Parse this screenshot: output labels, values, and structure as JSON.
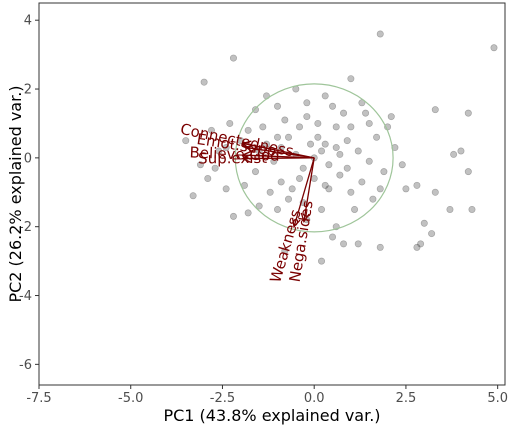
{
  "chart_data": {
    "type": "scatter",
    "subtype": "pca-biplot",
    "xlabel": "PC1 (43.8% explained var.)",
    "ylabel": "PC2 (26.2% explained var.)",
    "xlim": [
      -7.5,
      5.2
    ],
    "ylim": [
      -6.6,
      4.5
    ],
    "xticks": [
      -7.5,
      -5.0,
      -2.5,
      0.0,
      2.5,
      5.0
    ],
    "xtick_labels": [
      "-7.5",
      "-5.0",
      "-2.5",
      "0.0",
      "2.5",
      "5.0"
    ],
    "yticks": [
      -6,
      -4,
      -2,
      0,
      2,
      4
    ],
    "ytick_labels": [
      "-6",
      "-4",
      "-2",
      "0",
      "2",
      "4"
    ],
    "grid": false,
    "colors": {
      "points": "#333333",
      "loadings": "#7a0000",
      "circle": "#9fc59a"
    },
    "circle": {
      "cx": 0.0,
      "cy": 0.0,
      "r": 2.15
    },
    "loadings": [
      {
        "name": "Connectedness",
        "x": -1.95,
        "y": 0.42
      },
      {
        "name": "Emot.supp",
        "x": -1.85,
        "y": 0.3
      },
      {
        "name": "Believe.God",
        "x": -1.95,
        "y": 0.08
      },
      {
        "name": "Sup.exist",
        "x": -1.95,
        "y": -0.02
      },
      {
        "name": "Weakness",
        "x": -0.55,
        "y": -2.0
      },
      {
        "name": "Nega.sides",
        "x": -0.28,
        "y": -1.85
      }
    ],
    "points": [
      [
        4.9,
        3.2
      ],
      [
        1.8,
        3.6
      ],
      [
        -2.2,
        2.9
      ],
      [
        -3.0,
        2.2
      ],
      [
        1.0,
        2.3
      ],
      [
        -0.5,
        2.0
      ],
      [
        0.3,
        1.8
      ],
      [
        -1.0,
        1.5
      ],
      [
        -1.6,
        1.4
      ],
      [
        4.2,
        1.3
      ],
      [
        3.3,
        1.4
      ],
      [
        2.1,
        1.2
      ],
      [
        1.5,
        1.0
      ],
      [
        -2.8,
        0.8
      ],
      [
        -3.5,
        0.5
      ],
      [
        -2.6,
        0.2
      ],
      [
        -3.1,
        -0.2
      ],
      [
        -2.9,
        -0.6
      ],
      [
        -2.4,
        -0.9
      ],
      [
        -3.3,
        -1.1
      ],
      [
        4.0,
        0.2
      ],
      [
        3.8,
        0.1
      ],
      [
        4.2,
        -0.4
      ],
      [
        2.8,
        -0.8
      ],
      [
        2.5,
        -0.9
      ],
      [
        3.3,
        -1.0
      ],
      [
        3.7,
        -1.5
      ],
      [
        4.3,
        -1.5
      ],
      [
        3.0,
        -1.9
      ],
      [
        3.2,
        -2.2
      ],
      [
        2.8,
        -2.6
      ],
      [
        1.8,
        -2.6
      ],
      [
        2.9,
        -2.5
      ],
      [
        -1.0,
        -1.5
      ],
      [
        -1.5,
        -1.4
      ],
      [
        -1.8,
        -1.6
      ],
      [
        -2.2,
        -1.7
      ],
      [
        -0.2,
        -1.8
      ],
      [
        0.6,
        -2.0
      ],
      [
        1.2,
        -2.5
      ],
      [
        0.5,
        -2.3
      ],
      [
        0.8,
        -2.5
      ],
      [
        -0.8,
        -2.7
      ],
      [
        0.2,
        -3.0
      ],
      [
        -2.0,
        0.5
      ],
      [
        -1.5,
        0.2
      ],
      [
        -1.1,
        -0.1
      ],
      [
        -0.9,
        0.3
      ],
      [
        -0.7,
        0.6
      ],
      [
        -0.4,
        0.9
      ],
      [
        -0.2,
        1.2
      ],
      [
        0.1,
        0.6
      ],
      [
        0.3,
        0.4
      ],
      [
        0.6,
        0.9
      ],
      [
        0.9,
        0.5
      ],
      [
        1.2,
        0.2
      ],
      [
        1.5,
        -0.1
      ],
      [
        1.7,
        0.6
      ],
      [
        1.9,
        -0.4
      ],
      [
        -0.3,
        -0.3
      ],
      [
        0.0,
        -0.6
      ],
      [
        0.4,
        -0.9
      ],
      [
        0.7,
        -0.5
      ],
      [
        1.0,
        -1.0
      ],
      [
        1.3,
        -0.7
      ],
      [
        -0.6,
        -0.9
      ],
      [
        -0.9,
        -0.7
      ],
      [
        -1.2,
        -1.0
      ],
      [
        -0.3,
        -1.3
      ],
      [
        0.2,
        -1.5
      ],
      [
        1.1,
        -1.5
      ],
      [
        1.6,
        -1.2
      ],
      [
        -1.4,
        0.9
      ],
      [
        -2.3,
        1.0
      ],
      [
        -1.8,
        0.8
      ],
      [
        0.5,
        1.5
      ],
      [
        1.3,
        1.6
      ],
      [
        0.8,
        1.3
      ],
      [
        -0.8,
        1.1
      ],
      [
        -1.3,
        1.8
      ],
      [
        0.0,
        0.0
      ],
      [
        0.2,
        0.2
      ],
      [
        -0.1,
        0.4
      ],
      [
        0.4,
        -0.2
      ],
      [
        0.7,
        0.1
      ],
      [
        -0.5,
        0.1
      ],
      [
        1.0,
        0.9
      ],
      [
        -0.2,
        1.6
      ],
      [
        1.4,
        1.3
      ],
      [
        2.2,
        0.3
      ],
      [
        2.4,
        -0.2
      ],
      [
        -2.4,
        0.3
      ],
      [
        -2.7,
        -0.3
      ],
      [
        -1.9,
        -0.8
      ],
      [
        -1.6,
        -0.4
      ],
      [
        -1.3,
        0.4
      ],
      [
        0.9,
        -0.3
      ],
      [
        0.3,
        -0.8
      ],
      [
        -0.4,
        -0.6
      ],
      [
        0.6,
        0.3
      ],
      [
        1.8,
        -0.9
      ],
      [
        2.0,
        0.9
      ],
      [
        -0.7,
        -1.2
      ],
      [
        -1.0,
        0.6
      ],
      [
        0.1,
        1.0
      ]
    ]
  }
}
